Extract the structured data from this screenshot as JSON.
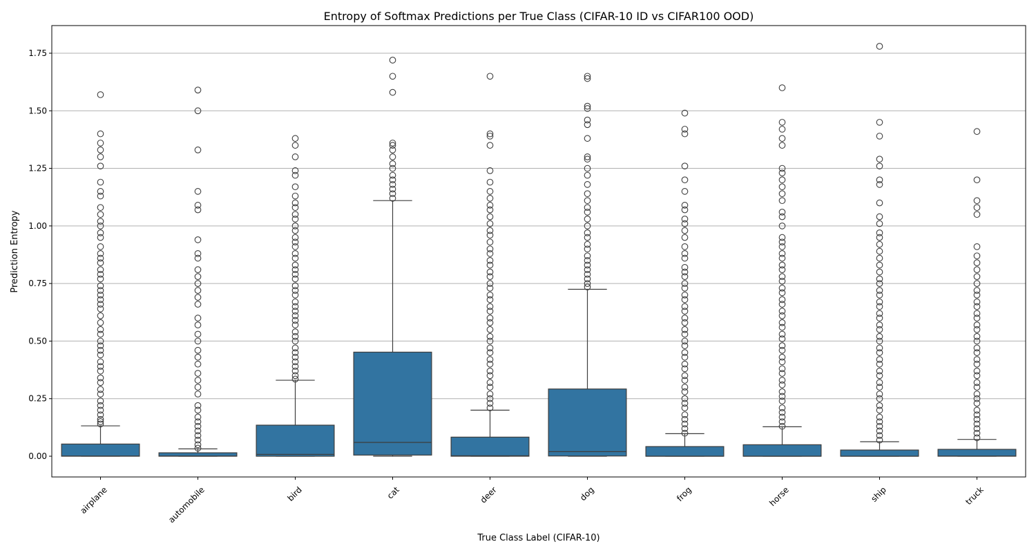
{
  "chart_data": {
    "type": "box",
    "title": "Entropy of Softmax Predictions per True Class (CIFAR-10 ID vs CIFAR100 OOD)",
    "xlabel": "True Class Label (CIFAR-10)",
    "ylabel": "Prediction Entropy",
    "ylim": [
      -0.09,
      1.87
    ],
    "yticks": [
      "0.00",
      "0.25",
      "0.50",
      "0.75",
      "1.00",
      "1.25",
      "1.50",
      "1.75"
    ],
    "grid": "horizontal",
    "box_color": "#3274a1",
    "categories": [
      "airplane",
      "automobile",
      "bird",
      "cat",
      "deer",
      "dog",
      "frog",
      "horse",
      "ship",
      "truck"
    ],
    "boxes": [
      {
        "label": "airplane",
        "whisker_low": 0.0,
        "q1": 0.0,
        "median": 0.001,
        "q3": 0.053,
        "whisker_high": 0.132,
        "outliers": [
          0.14,
          0.15,
          0.16,
          0.18,
          0.2,
          0.22,
          0.24,
          0.27,
          0.29,
          0.32,
          0.34,
          0.37,
          0.39,
          0.41,
          0.44,
          0.46,
          0.48,
          0.5,
          0.53,
          0.55,
          0.58,
          0.61,
          0.64,
          0.66,
          0.68,
          0.7,
          0.72,
          0.74,
          0.77,
          0.79,
          0.81,
          0.84,
          0.86,
          0.88,
          0.91,
          0.95,
          0.97,
          1.0,
          1.02,
          1.05,
          1.08,
          1.13,
          1.15,
          1.19,
          1.26,
          1.3,
          1.33,
          1.36,
          1.4,
          1.57
        ]
      },
      {
        "label": "automobile",
        "whisker_low": 0.0,
        "q1": 0.0,
        "median": 0.001,
        "q3": 0.015,
        "whisker_high": 0.032,
        "outliers": [
          0.035,
          0.05,
          0.07,
          0.09,
          0.11,
          0.13,
          0.15,
          0.17,
          0.2,
          0.22,
          0.27,
          0.3,
          0.33,
          0.36,
          0.4,
          0.43,
          0.46,
          0.5,
          0.53,
          0.57,
          0.6,
          0.66,
          0.69,
          0.72,
          0.75,
          0.78,
          0.81,
          0.86,
          0.88,
          0.94,
          1.07,
          1.09,
          1.15,
          1.33,
          1.5,
          1.59
        ]
      },
      {
        "label": "bird",
        "whisker_low": 0.0,
        "q1": 0.0,
        "median": 0.008,
        "q3": 0.135,
        "whisker_high": 0.33,
        "outliers": [
          0.335,
          0.35,
          0.37,
          0.39,
          0.41,
          0.43,
          0.45,
          0.47,
          0.5,
          0.52,
          0.54,
          0.57,
          0.59,
          0.61,
          0.63,
          0.65,
          0.67,
          0.7,
          0.72,
          0.74,
          0.77,
          0.79,
          0.81,
          0.83,
          0.86,
          0.88,
          0.91,
          0.93,
          0.95,
          0.98,
          1.0,
          1.03,
          1.05,
          1.08,
          1.1,
          1.13,
          1.17,
          1.22,
          1.24,
          1.3,
          1.35,
          1.38
        ]
      },
      {
        "label": "cat",
        "whisker_low": 0.0,
        "q1": 0.005,
        "median": 0.06,
        "q3": 0.452,
        "whisker_high": 1.11,
        "outliers": [
          1.12,
          1.14,
          1.16,
          1.18,
          1.2,
          1.22,
          1.25,
          1.27,
          1.3,
          1.33,
          1.35,
          1.36,
          1.58,
          1.65,
          1.72
        ]
      },
      {
        "label": "deer",
        "whisker_low": 0.0,
        "q1": 0.0,
        "median": 0.002,
        "q3": 0.083,
        "whisker_high": 0.2,
        "outliers": [
          0.21,
          0.23,
          0.25,
          0.27,
          0.3,
          0.32,
          0.35,
          0.37,
          0.4,
          0.42,
          0.45,
          0.47,
          0.5,
          0.52,
          0.55,
          0.58,
          0.6,
          0.63,
          0.65,
          0.68,
          0.7,
          0.73,
          0.75,
          0.78,
          0.8,
          0.83,
          0.85,
          0.88,
          0.9,
          0.93,
          0.96,
          0.98,
          1.01,
          1.04,
          1.07,
          1.09,
          1.12,
          1.15,
          1.19,
          1.24,
          1.35,
          1.39,
          1.4,
          1.65
        ]
      },
      {
        "label": "dog",
        "whisker_low": 0.0,
        "q1": 0.001,
        "median": 0.02,
        "q3": 0.292,
        "whisker_high": 0.725,
        "outliers": [
          0.735,
          0.75,
          0.77,
          0.79,
          0.81,
          0.83,
          0.85,
          0.87,
          0.9,
          0.92,
          0.95,
          0.97,
          1.0,
          1.03,
          1.06,
          1.08,
          1.11,
          1.14,
          1.18,
          1.22,
          1.25,
          1.29,
          1.3,
          1.38,
          1.44,
          1.46,
          1.51,
          1.52,
          1.64,
          1.65
        ]
      },
      {
        "label": "frog",
        "whisker_low": 0.0,
        "q1": 0.0,
        "median": 0.0,
        "q3": 0.042,
        "whisker_high": 0.098,
        "outliers": [
          0.1,
          0.12,
          0.14,
          0.16,
          0.18,
          0.21,
          0.23,
          0.25,
          0.28,
          0.3,
          0.33,
          0.35,
          0.38,
          0.4,
          0.43,
          0.45,
          0.48,
          0.5,
          0.53,
          0.55,
          0.58,
          0.6,
          0.63,
          0.65,
          0.68,
          0.7,
          0.73,
          0.75,
          0.78,
          0.8,
          0.82,
          0.86,
          0.88,
          0.91,
          0.95,
          0.98,
          1.01,
          1.03,
          1.07,
          1.09,
          1.15,
          1.2,
          1.26,
          1.4,
          1.42,
          1.49
        ]
      },
      {
        "label": "horse",
        "whisker_low": 0.0,
        "q1": 0.0,
        "median": 0.0,
        "q3": 0.05,
        "whisker_high": 0.128,
        "outliers": [
          0.13,
          0.15,
          0.17,
          0.19,
          0.21,
          0.24,
          0.26,
          0.28,
          0.31,
          0.33,
          0.36,
          0.38,
          0.41,
          0.43,
          0.46,
          0.48,
          0.51,
          0.53,
          0.56,
          0.58,
          0.61,
          0.63,
          0.66,
          0.68,
          0.71,
          0.73,
          0.76,
          0.78,
          0.81,
          0.83,
          0.86,
          0.88,
          0.91,
          0.93,
          0.95,
          1.0,
          1.04,
          1.06,
          1.11,
          1.14,
          1.17,
          1.2,
          1.23,
          1.25,
          1.35,
          1.38,
          1.42,
          1.45,
          1.6
        ]
      },
      {
        "label": "ship",
        "whisker_low": 0.0,
        "q1": 0.0,
        "median": 0.0,
        "q3": 0.027,
        "whisker_high": 0.063,
        "outliers": [
          0.07,
          0.09,
          0.11,
          0.13,
          0.15,
          0.17,
          0.2,
          0.22,
          0.25,
          0.27,
          0.3,
          0.32,
          0.35,
          0.37,
          0.4,
          0.42,
          0.45,
          0.47,
          0.5,
          0.52,
          0.55,
          0.57,
          0.6,
          0.62,
          0.65,
          0.67,
          0.7,
          0.72,
          0.75,
          0.77,
          0.8,
          0.83,
          0.86,
          0.89,
          0.92,
          0.95,
          0.97,
          1.01,
          1.04,
          1.1,
          1.18,
          1.2,
          1.26,
          1.29,
          1.39,
          1.45,
          1.78
        ]
      },
      {
        "label": "truck",
        "whisker_low": 0.0,
        "q1": 0.0,
        "median": 0.001,
        "q3": 0.03,
        "whisker_high": 0.073,
        "outliers": [
          0.08,
          0.1,
          0.12,
          0.14,
          0.16,
          0.18,
          0.2,
          0.23,
          0.25,
          0.27,
          0.3,
          0.32,
          0.35,
          0.37,
          0.4,
          0.42,
          0.45,
          0.47,
          0.5,
          0.52,
          0.55,
          0.57,
          0.6,
          0.62,
          0.65,
          0.67,
          0.7,
          0.72,
          0.75,
          0.78,
          0.81,
          0.84,
          0.87,
          0.91,
          1.05,
          1.08,
          1.11,
          1.2,
          1.41
        ]
      }
    ]
  }
}
